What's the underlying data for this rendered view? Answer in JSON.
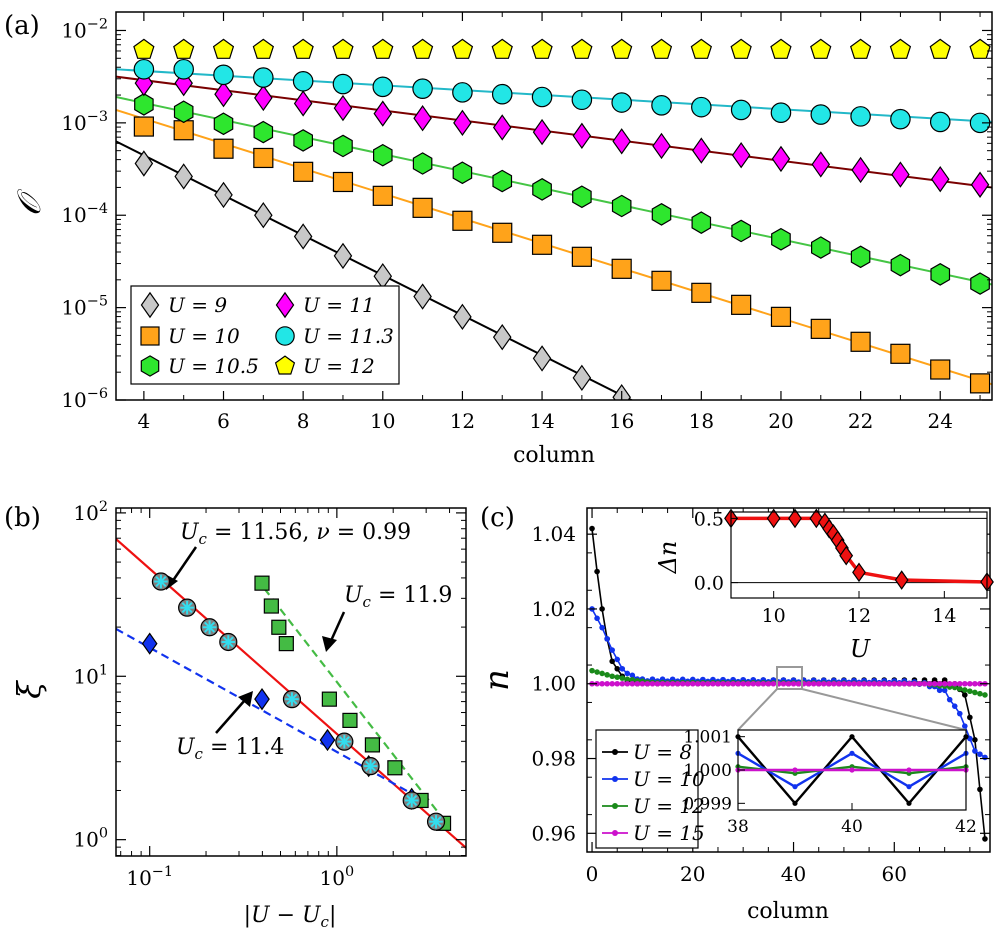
{
  "chart_data": [
    {
      "panel": "(a)",
      "type": "scatter",
      "yscale": "log",
      "xlabel": "column",
      "ylabel": "𝒪",
      "xlim": [
        3.3,
        25.3
      ],
      "ylim_log10": [
        -6,
        -1.8
      ],
      "xticks": [
        4,
        6,
        8,
        10,
        12,
        14,
        16,
        18,
        20,
        22,
        24
      ],
      "xtick_labels": [
        "4",
        "6",
        "8",
        "10",
        "12",
        "14",
        "16",
        "18",
        "20",
        "22",
        "24"
      ],
      "ytick_exp": [
        -2,
        -3,
        -4,
        -5,
        -6
      ],
      "ytick_base": "10",
      "ytick_sup": [
        "−2",
        "−3",
        "−4",
        "−5",
        "−6"
      ],
      "legend": [
        "U = 9",
        "U = 11",
        "U = 10",
        "U = 11.3",
        "U = 10.5",
        "U = 12"
      ],
      "series": [
        {
          "name": "U = 9",
          "marker": "diamond",
          "color": "#c8c8c8",
          "line": "#000000",
          "x": [
            4,
            5,
            6,
            7,
            8,
            9,
            10,
            11,
            12,
            13,
            14,
            15,
            16
          ],
          "log10y": [
            -3.44,
            -3.58,
            -3.78,
            -4.0,
            -4.23,
            -4.44,
            -4.66,
            -4.88,
            -5.1,
            -5.32,
            -5.55,
            -5.76,
            -5.97
          ],
          "fit": [
            [
              3.3,
              -3.2
            ],
            [
              16.7,
              -6.1
            ]
          ]
        },
        {
          "name": "U = 10",
          "marker": "square",
          "color": "#ffa31a",
          "line": "#ffa31a",
          "x": [
            4,
            5,
            6,
            7,
            8,
            9,
            10,
            11,
            12,
            13,
            14,
            15,
            16,
            17,
            18,
            19,
            20,
            21,
            22,
            23,
            24,
            25
          ],
          "log10y": [
            -3.04,
            -3.08,
            -3.28,
            -3.38,
            -3.53,
            -3.64,
            -3.79,
            -3.92,
            -4.06,
            -4.19,
            -4.32,
            -4.45,
            -4.58,
            -4.71,
            -4.84,
            -4.97,
            -5.1,
            -5.23,
            -5.37,
            -5.5,
            -5.67,
            -5.82
          ],
          "fit": [
            [
              3.3,
              -2.86
            ],
            [
              25.3,
              -5.83
            ]
          ]
        },
        {
          "name": "U = 10.5",
          "marker": "hexagon",
          "color": "#2ee62e",
          "line": "#45c545",
          "x": [
            4,
            5,
            6,
            7,
            8,
            9,
            10,
            11,
            12,
            13,
            14,
            15,
            16,
            17,
            18,
            19,
            20,
            21,
            22,
            23,
            24,
            25
          ],
          "log10y": [
            -2.8,
            -2.88,
            -3.01,
            -3.1,
            -3.19,
            -3.25,
            -3.35,
            -3.44,
            -3.54,
            -3.63,
            -3.72,
            -3.8,
            -3.9,
            -3.99,
            -4.08,
            -4.17,
            -4.26,
            -4.35,
            -4.45,
            -4.54,
            -4.64,
            -4.74
          ],
          "fit": [
            [
              3.3,
              -2.72
            ],
            [
              25.3,
              -4.75
            ]
          ]
        },
        {
          "name": "U = 11",
          "marker": "diamond",
          "color": "#ff00ff",
          "line": "#7a0000",
          "x": [
            4,
            5,
            6,
            7,
            8,
            9,
            10,
            11,
            12,
            13,
            14,
            15,
            16,
            17,
            18,
            19,
            20,
            21,
            22,
            23,
            24,
            25
          ],
          "log10y": [
            -2.57,
            -2.57,
            -2.69,
            -2.73,
            -2.79,
            -2.84,
            -2.9,
            -2.95,
            -3.0,
            -3.05,
            -3.1,
            -3.14,
            -3.2,
            -3.25,
            -3.3,
            -3.35,
            -3.39,
            -3.45,
            -3.51,
            -3.56,
            -3.61,
            -3.67
          ],
          "fit": [
            [
              3.3,
              -2.5
            ],
            [
              25.3,
              -3.7
            ]
          ]
        },
        {
          "name": "U = 11.3",
          "marker": "circle",
          "color": "#22e6e6",
          "line": "#22b8c8",
          "x": [
            4,
            5,
            6,
            7,
            8,
            9,
            10,
            11,
            12,
            13,
            14,
            15,
            16,
            17,
            18,
            19,
            20,
            21,
            22,
            23,
            24,
            25
          ],
          "log10y": [
            -2.42,
            -2.42,
            -2.48,
            -2.51,
            -2.55,
            -2.58,
            -2.61,
            -2.63,
            -2.67,
            -2.69,
            -2.72,
            -2.75,
            -2.78,
            -2.81,
            -2.83,
            -2.86,
            -2.89,
            -2.91,
            -2.93,
            -2.96,
            -2.99,
            -3.0
          ],
          "fit": [
            [
              3.3,
              -2.42
            ],
            [
              25.3,
              -2.99
            ]
          ]
        },
        {
          "name": "U = 12",
          "marker": "pentagon",
          "color": "#ffff00",
          "line": "none",
          "x": [
            4,
            5,
            6,
            7,
            8,
            9,
            10,
            11,
            12,
            13,
            14,
            15,
            16,
            17,
            18,
            19,
            20,
            21,
            22,
            23,
            24,
            25
          ],
          "log10y": [
            -2.21,
            -2.21,
            -2.21,
            -2.21,
            -2.21,
            -2.21,
            -2.21,
            -2.21,
            -2.21,
            -2.21,
            -2.21,
            -2.21,
            -2.21,
            -2.21,
            -2.21,
            -2.21,
            -2.21,
            -2.21,
            -2.21,
            -2.21,
            -2.21,
            -2.21
          ]
        }
      ]
    },
    {
      "panel": "(b)",
      "type": "scatter",
      "xscale": "log",
      "yscale": "log",
      "xlabel": "|U − U_c|",
      "ylabel": "ξ",
      "xlim_log10": [
        -1.18,
        0.69
      ],
      "ylim_log10": [
        -0.1,
        2.03
      ],
      "xticks_exp": [
        -1,
        0
      ],
      "yticks_exp": [
        0,
        1,
        2
      ],
      "tick_base": "10",
      "xtick_sup": [
        "−1",
        "0"
      ],
      "ytick_sup": [
        "0",
        "1",
        "2"
      ],
      "annotations": [
        {
          "text": "U_c = 11.56, ν = 0.99",
          "color": "#ee1111"
        },
        {
          "text": "U_c = 11.9",
          "color": "#1a8a1a"
        },
        {
          "text": "U_c = 11.4",
          "color": "#1133ee"
        }
      ],
      "series": [
        {
          "name": "U_c = 11.56",
          "marker": "circle-star",
          "color": "#808080",
          "star": "#33ddee",
          "line": "#ee1111",
          "log10x": [
            -0.94,
            -0.8,
            -0.68,
            -0.58,
            -0.24,
            0.04,
            0.18,
            0.4,
            0.53
          ],
          "log10y": [
            1.58,
            1.42,
            1.3,
            1.21,
            0.86,
            0.6,
            0.45,
            0.24,
            0.11
          ],
          "fit": [
            [
              -1.18,
              1.84
            ],
            [
              0.69,
              -0.05
            ]
          ]
        },
        {
          "name": "U_c = 11.4",
          "marker": "diamond",
          "color": "#1133ee",
          "line": "#1133ee",
          "log10x": [
            -1.0,
            -0.4,
            -0.05,
            0.17,
            0.4
          ],
          "log10y": [
            1.2,
            0.86,
            0.61,
            0.45,
            0.25
          ],
          "fit": [
            [
              -1.18,
              1.29
            ],
            [
              0.45,
              0.25
            ]
          ]
        },
        {
          "name": "U_c = 11.9",
          "marker": "square",
          "color": "#44bb44",
          "line": "#44bb44",
          "log10x": [
            -0.4,
            -0.35,
            -0.31,
            -0.27,
            -0.04,
            0.07,
            0.19,
            0.31,
            0.45,
            0.57
          ],
          "log10y": [
            1.57,
            1.43,
            1.3,
            1.2,
            0.86,
            0.73,
            0.58,
            0.44,
            0.24,
            0.1
          ],
          "fit": [
            [
              -0.43,
              1.6
            ],
            [
              0.6,
              0.08
            ]
          ]
        }
      ]
    },
    {
      "panel": "(c)",
      "type": "line",
      "xlabel": "column",
      "ylabel": "n",
      "xlim": [
        -1,
        79
      ],
      "ylim": [
        0.955,
        1.047
      ],
      "xticks": [
        0,
        20,
        40,
        60
      ],
      "xtick_labels": [
        "0",
        "20",
        "40",
        "60"
      ],
      "yticks": [
        0.96,
        0.98,
        1.0,
        1.02,
        1.04
      ],
      "ytick_labels": [
        "0.96",
        "0.98",
        "1.00",
        "1.02",
        "1.04"
      ],
      "legend": [
        "U = 8",
        "U = 10",
        "U = 12",
        "U = 15"
      ],
      "series": [
        {
          "name": "U = 8",
          "color": "#000000",
          "shape": [
            [
              0,
              1.0415
            ],
            [
              1,
              1.03
            ],
            [
              2,
              1.02
            ],
            [
              3,
              1.012
            ],
            [
              4,
              1.006
            ],
            [
              6,
              1.002
            ],
            [
              8,
              1.0005
            ],
            [
              70,
              1.0005
            ],
            [
              72,
              1.0
            ],
            [
              74,
              0.997
            ],
            [
              76,
              0.985
            ],
            [
              78,
              0.9585
            ]
          ],
          "osc": 0.001
        },
        {
          "name": "U = 10",
          "color": "#1133ee",
          "shape": [
            [
              0,
              1.02
            ],
            [
              2,
              1.015
            ],
            [
              4,
              1.009
            ],
            [
              6,
              1.004
            ],
            [
              8,
              1.002
            ],
            [
              10,
              1.001
            ],
            [
              62,
              1.0005
            ],
            [
              66,
              1.0
            ],
            [
              70,
              0.998
            ],
            [
              73,
              0.992
            ],
            [
              76,
              0.982
            ],
            [
              78,
              0.9803
            ]
          ],
          "osc": 0.0005
        },
        {
          "name": "U = 12",
          "color": "#1a8a1a",
          "shape": [
            [
              0,
              1.0035
            ],
            [
              4,
              1.002
            ],
            [
              8,
              1.001
            ],
            [
              12,
              1.0003
            ],
            [
              66,
              1.0
            ],
            [
              72,
              0.999
            ],
            [
              78,
              0.997
            ]
          ],
          "osc": 0.0001
        },
        {
          "name": "U = 15",
          "color": "#cc11cc",
          "shape": [
            [
              0,
              1.0
            ],
            [
              78,
              1.0
            ]
          ],
          "osc": 0.0
        }
      ],
      "inset_zoom": {
        "xlim": [
          38,
          42
        ],
        "ylim": [
          0.9988,
          1.0012
        ],
        "xticks": [
          38,
          40,
          42
        ],
        "xtick_labels": [
          "38",
          "40",
          "42"
        ],
        "yticks": [
          0.999,
          1.0,
          1.001
        ],
        "ytick_labels": [
          "0.999",
          "1.000",
          "1.001"
        ]
      },
      "inset_gap": {
        "xlabel": "U",
        "ylabel": "Δn",
        "xlim": [
          9,
          15
        ],
        "ylim": [
          -0.12,
          0.55
        ],
        "xticks": [
          10,
          12,
          14
        ],
        "xtick_labels": [
          "10",
          "12",
          "14"
        ],
        "yticks": [
          0.0,
          0.5
        ],
        "ytick_labels": [
          "0.0",
          "0.5"
        ],
        "color": "#ee1111",
        "U": [
          9.0,
          10.0,
          10.5,
          11.0,
          11.2,
          11.3,
          11.4,
          11.5,
          11.6,
          11.7,
          12.0,
          13.0,
          15.0
        ],
        "dn": [
          0.5,
          0.5,
          0.5,
          0.5,
          0.47,
          0.42,
          0.38,
          0.33,
          0.27,
          0.21,
          0.08,
          0.02,
          0.005
        ]
      }
    }
  ]
}
